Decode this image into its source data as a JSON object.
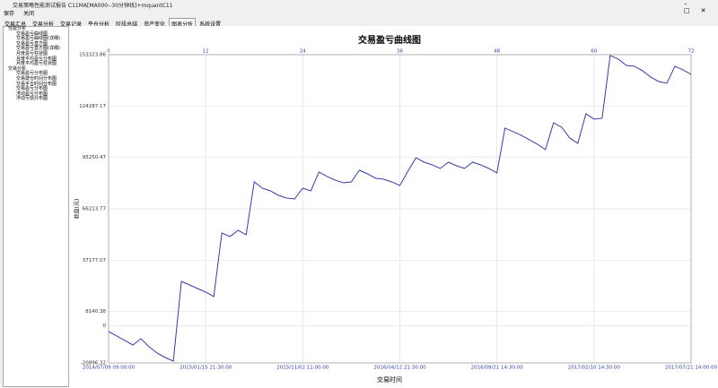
{
  "window": {
    "title": "交易策略性能测试报告 C11MA[MA000--30分钟线]+mquantC11"
  },
  "toolbar": {
    "buttons": [
      "保存",
      "关闭"
    ]
  },
  "tabs": {
    "items": [
      "交易汇总",
      "交易分析",
      "交易记录",
      "平仓分析",
      "阶段总结",
      "资产变化",
      "图表分析",
      "系统设置"
    ],
    "selected": 6
  },
  "tree": {
    "groups": [
      {
        "label": "性能分析",
        "items": [
          "交易盈亏曲线图",
          "交易盈亏曲线图(详细)",
          "交易盈亏直方图",
          "交易盈亏直方图(详细)",
          "月度盈亏柱状图",
          "月度平均盈亏分布图",
          "月度平均盈亏柱状图"
        ]
      },
      {
        "label": "交易分析",
        "items": [
          "交易盈亏分布图",
          "交易建仓时间分布图",
          "交易平仓时间分布图",
          "交易盈亏分布图",
          "浮动盈亏分布图",
          "浮动亏损分布图"
        ]
      }
    ]
  },
  "chart_data": {
    "type": "line",
    "title": "交易盈亏曲线图",
    "x_label": "交易时间",
    "y_label": "收益(元)",
    "x": [
      0,
      1,
      2,
      3,
      4,
      5,
      6,
      7,
      8,
      9,
      10,
      11,
      12,
      13,
      14,
      15,
      16,
      17,
      18,
      19,
      20,
      21,
      22,
      23,
      24,
      25,
      26,
      27,
      28,
      29,
      30,
      31,
      32,
      33,
      34,
      35,
      36,
      37,
      38,
      39,
      40,
      41,
      42,
      43,
      44,
      45,
      46,
      47,
      48,
      49,
      50,
      51,
      52,
      53,
      54,
      55,
      56,
      57,
      58,
      59,
      60,
      61,
      62,
      63,
      64,
      65,
      66,
      67,
      68,
      69,
      70,
      71,
      72
    ],
    "series": [
      {
        "name": "交易盈亏",
        "color": "#3a3aa8",
        "values": [
          -3170,
          -5702,
          -8234,
          -10766,
          -7221,
          -11780,
          -15325,
          -17857,
          -19883,
          25195,
          23169,
          21143,
          19117,
          16585,
          52546,
          50520,
          54066,
          51533,
          81418,
          77872,
          76352,
          73820,
          72300,
          71794,
          77872,
          76352,
          86989,
          84456,
          82430,
          80911,
          81417,
          88000,
          85973,
          83441,
          82934,
          81418,
          79391,
          87495,
          95092,
          92560,
          91040,
          89014,
          92560,
          90534,
          89014,
          92560,
          91040,
          89014,
          86482,
          111806,
          109780,
          107754,
          105222,
          102689,
          99650,
          114846,
          112313,
          106235,
          103196,
          119910,
          116871,
          117378,
          152832,
          150806,
          147261,
          146754,
          144222,
          140676,
          138144,
          137131,
          146754,
          144728,
          142196
        ]
      }
    ],
    "xlim": [
      0,
      72
    ],
    "xticks": [
      0,
      12,
      24,
      36,
      48,
      60,
      72
    ],
    "x_date_labels": [
      "2014/07/09 09:00:00",
      "2015/01/15 21:30:00",
      "2015/11/02 11:00:00",
      "2016/04/12 21:30:00",
      "2016/09/21 14:30:00",
      "2017/02/10 14:30:00",
      "2017/07/21 14:00:00"
    ],
    "ylim": [
      -20896.32,
      153323.86
    ],
    "yticks": [
      -20896.32,
      0,
      8140.38,
      37177.07,
      66213.77,
      95250.47,
      124287.17,
      153323.86
    ],
    "grid": true
  }
}
